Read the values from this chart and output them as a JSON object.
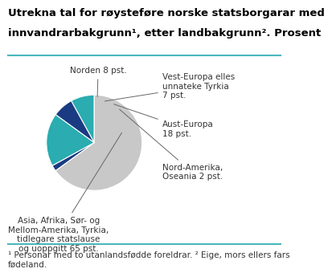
{
  "title_line1": "Utrekna tal for røysteføre norske statsborgarar med",
  "title_line2": "innvandrarbakgrunn¹, etter landbakgrunn². Prosent",
  "slices": [
    8,
    7,
    18,
    2,
    65
  ],
  "colors": [
    "#2aacb0",
    "#1a3b82",
    "#2aacb0",
    "#1a3b82",
    "#c8c8c8"
  ],
  "startangle": 90,
  "footnote": "¹ Personar med to utanlandsfødde foreldrar. ² Eige, mors ellers fars\nfødeland.",
  "line_color": "#4ab8bd",
  "title_fontsize": 9.5,
  "label_fontsize": 7.5,
  "footnote_fontsize": 7.5
}
